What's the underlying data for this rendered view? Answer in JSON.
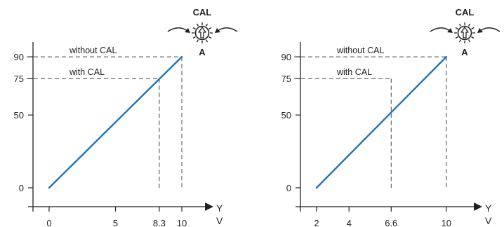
{
  "colors": {
    "line": "#1f73b7",
    "axis": "#231f20",
    "guide": "#444444"
  },
  "icons": {
    "dial": "calibration-dial-icon",
    "arrow_left": "curved-arrow-clockwise-icon",
    "arrow_right": "curved-arrow-counterclockwise-icon"
  },
  "chart_data": [
    {
      "type": "line",
      "x_unit_labels": [
        "Y",
        "V"
      ],
      "x_ticks": [
        "0",
        "5",
        "8.3",
        "10"
      ],
      "y_ticks": [
        "0",
        "50",
        "75",
        "90"
      ],
      "xlim": [
        -1.5,
        11.5
      ],
      "ylim": [
        -10,
        95
      ],
      "series": [
        {
          "values": [
            [
              0,
              0
            ],
            [
              10,
              90
            ]
          ]
        }
      ],
      "reference_lines": [
        {
          "label": "without CAL",
          "x": 10,
          "y": 90
        },
        {
          "label": "with CAL",
          "x": 8.3,
          "y": 75
        }
      ],
      "knob": {
        "top_label": "CAL",
        "bottom_label": "A"
      }
    },
    {
      "type": "line",
      "x_unit_labels": [
        "Y",
        "V"
      ],
      "x_ticks": [
        "2",
        "4",
        "6.6",
        "10"
      ],
      "y_ticks": [
        "0",
        "50",
        "75",
        "90"
      ],
      "xlim": [
        1.0,
        11.2
      ],
      "ylim": [
        -10,
        95
      ],
      "series": [
        {
          "values": [
            [
              2,
              0
            ],
            [
              10,
              90
            ]
          ]
        }
      ],
      "reference_lines": [
        {
          "label": "without CAL",
          "x": 10,
          "y": 90
        },
        {
          "label": "with CAL",
          "x": 6.6,
          "y": 75
        }
      ],
      "knob": {
        "top_label": "CAL",
        "bottom_label": "A"
      }
    }
  ]
}
